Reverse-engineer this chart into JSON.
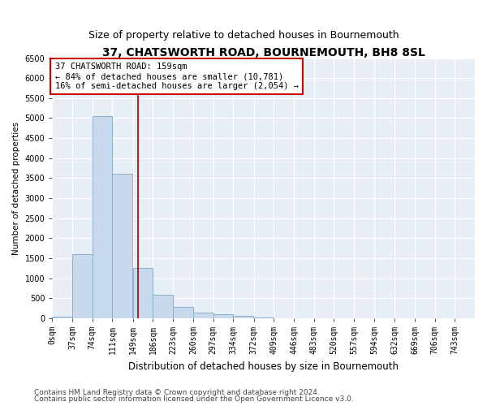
{
  "title": "37, CHATSWORTH ROAD, BOURNEMOUTH, BH8 8SL",
  "subtitle": "Size of property relative to detached houses in Bournemouth",
  "xlabel": "Distribution of detached houses by size in Bournemouth",
  "ylabel": "Number of detached properties",
  "bar_color": "#c8d9eb",
  "bar_edge_color": "#8ab0cc",
  "background_color": "#e8eef5",
  "grid_color": "#ffffff",
  "annotation_line_color": "#aa0000",
  "annotation_box_color": "#cc0000",
  "property_sqm": 159,
  "annotation_text_line1": "37 CHATSWORTH ROAD: 159sqm",
  "annotation_text_line2": "← 84% of detached houses are smaller (10,781)",
  "annotation_text_line3": "16% of semi-detached houses are larger (2,054) →",
  "categories": [
    "0sqm",
    "37sqm",
    "74sqm",
    "111sqm",
    "149sqm",
    "186sqm",
    "223sqm",
    "260sqm",
    "297sqm",
    "334sqm",
    "372sqm",
    "409sqm",
    "446sqm",
    "483sqm",
    "520sqm",
    "557sqm",
    "594sqm",
    "632sqm",
    "669sqm",
    "706sqm",
    "743sqm"
  ],
  "bin_edges": [
    0,
    37,
    74,
    111,
    149,
    186,
    223,
    260,
    297,
    334,
    372,
    409,
    446,
    483,
    520,
    557,
    594,
    632,
    669,
    706,
    743
  ],
  "values": [
    30,
    1600,
    5050,
    3600,
    1250,
    580,
    280,
    130,
    90,
    50,
    25,
    0,
    0,
    0,
    0,
    0,
    0,
    0,
    0,
    0,
    0
  ],
  "ylim": [
    0,
    6500
  ],
  "yticks": [
    0,
    500,
    1000,
    1500,
    2000,
    2500,
    3000,
    3500,
    4000,
    4500,
    5000,
    5500,
    6000,
    6500
  ],
  "footer_line1": "Contains HM Land Registry data © Crown copyright and database right 2024.",
  "footer_line2": "Contains public sector information licensed under the Open Government Licence v3.0.",
  "title_fontsize": 10,
  "subtitle_fontsize": 9,
  "xlabel_fontsize": 8.5,
  "ylabel_fontsize": 7.5,
  "tick_fontsize": 7,
  "footer_fontsize": 6.5,
  "annotation_fontsize": 7.5
}
